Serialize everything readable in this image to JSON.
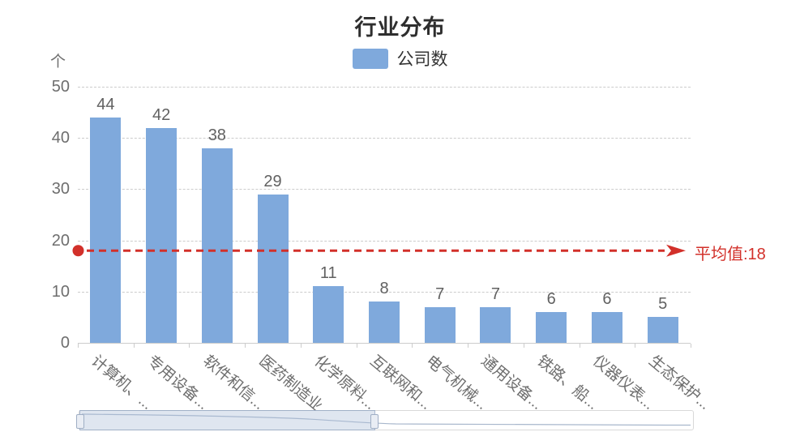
{
  "colors": {
    "bar": "#7fa9dc",
    "average_line": "#d2302a",
    "axis_text": "#6e6e6e",
    "grid_line": "#cccccc"
  },
  "chart_data": {
    "type": "bar",
    "title": "行业分布",
    "ylabel": "个",
    "xlabel": "",
    "legend_position": "top",
    "grid": "dashed-horizontal",
    "categories": [
      "计算机、...",
      "专用设备...",
      "软件和信...",
      "医药制造业",
      "化学原料...",
      "互联网和...",
      "电气机械...",
      "通用设备...",
      "铁路、船...",
      "仪器仪表...",
      "生态保护..."
    ],
    "series": [
      {
        "name": "公司数",
        "values": [
          44,
          42,
          38,
          29,
          11,
          8,
          7,
          7,
          6,
          6,
          5
        ]
      }
    ],
    "ylim": [
      0,
      50
    ],
    "yticks": [
      0,
      10,
      20,
      30,
      40,
      50
    ],
    "average_line": {
      "value": 18,
      "label": "平均值:18"
    },
    "datazoom": {
      "start_fraction": 0,
      "end_fraction": 0.48
    }
  }
}
